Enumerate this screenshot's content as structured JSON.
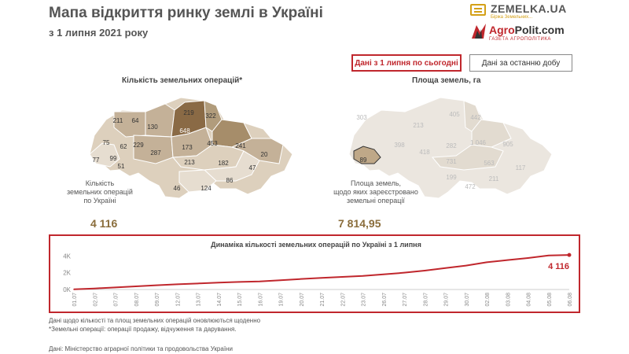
{
  "header": {
    "title": "Мапа відкриття ринку землі в Україні",
    "subtitle": "з 1 липня 2021 року"
  },
  "logos": {
    "zemelka": {
      "name": "ZEMELKA.UA",
      "tagline": "Біржа Земельних..."
    },
    "agropolit": {
      "name_a": "Agro",
      "name_b": "Polit.com",
      "tagline": "ГАЗЕТА АГРОПОЛІТИКА"
    }
  },
  "toggles": {
    "active_label": "Дані з 1 липня по сьогодні",
    "inactive_label": "Дані за останню добу"
  },
  "left_map": {
    "heading": "Кількість земельних операцій*",
    "caption": "Кількість\nземельних операцій\nпо Україні",
    "total": "4 116",
    "region_values": [
      "211",
      "64",
      "130",
      "648",
      "219",
      "322",
      "75",
      "62",
      "229",
      "287",
      "173",
      "453",
      "241",
      "20",
      "77",
      "99",
      "51",
      "213",
      "182",
      "47",
      "46",
      "124",
      "86"
    ]
  },
  "right_map": {
    "heading": "Площа земель, га",
    "caption": "Площа земель,\nщодо яких зареєстровано\nземельні операції",
    "total": "7 814,95",
    "highlight_value": "89",
    "region_values": [
      "303",
      "213",
      "405",
      "442",
      "398",
      "418",
      "282",
      "1 046",
      "905",
      "731",
      "563",
      "211",
      "117",
      "199",
      "472"
    ]
  },
  "dynamics": {
    "title": "Динаміка кількості земельних операцій по Україні з 1 липня",
    "last_value_label": "4 116"
  },
  "chart_data": {
    "type": "line",
    "title": "Динаміка кількості земельних операцій по Україні з 1 липня",
    "yticks": [
      "4K",
      "2K",
      "0K"
    ],
    "ylim": [
      0,
      4500
    ],
    "x": [
      "01.07",
      "02.07",
      "07.07",
      "08.07",
      "09.07",
      "12.07",
      "13.07",
      "14.07",
      "15.07",
      "16.07",
      "19.07",
      "20.07",
      "21.07",
      "22.07",
      "23.07",
      "26.07",
      "27.07",
      "28.07",
      "29.07",
      "30.07",
      "02.08",
      "03.08",
      "04.08",
      "05.08",
      "06.08"
    ],
    "series": [
      {
        "values": [
          20,
          120,
          250,
          380,
          500,
          620,
          720,
          820,
          900,
          960,
          1100,
          1250,
          1380,
          1500,
          1620,
          1800,
          2000,
          2250,
          2550,
          2850,
          3250,
          3500,
          3750,
          4050,
          4116
        ]
      }
    ],
    "color": "#c0272d",
    "grid": false
  },
  "footnotes": {
    "line1": "Дані щодо кількості та площ земельних операцій оновлюються щоденно",
    "line2": "*Земельні операції:  операції продажу, відчуження та дарування.",
    "source": "Дані: Міністерство аграрної політики та продовольства України"
  },
  "colors": {
    "accent": "#c0272d",
    "number": "#8a6d3b",
    "map_dark": "#8a6a45",
    "map_mid": "#bfa888",
    "map_light": "#ddd0bd",
    "map_pale": "#ebe6df"
  }
}
